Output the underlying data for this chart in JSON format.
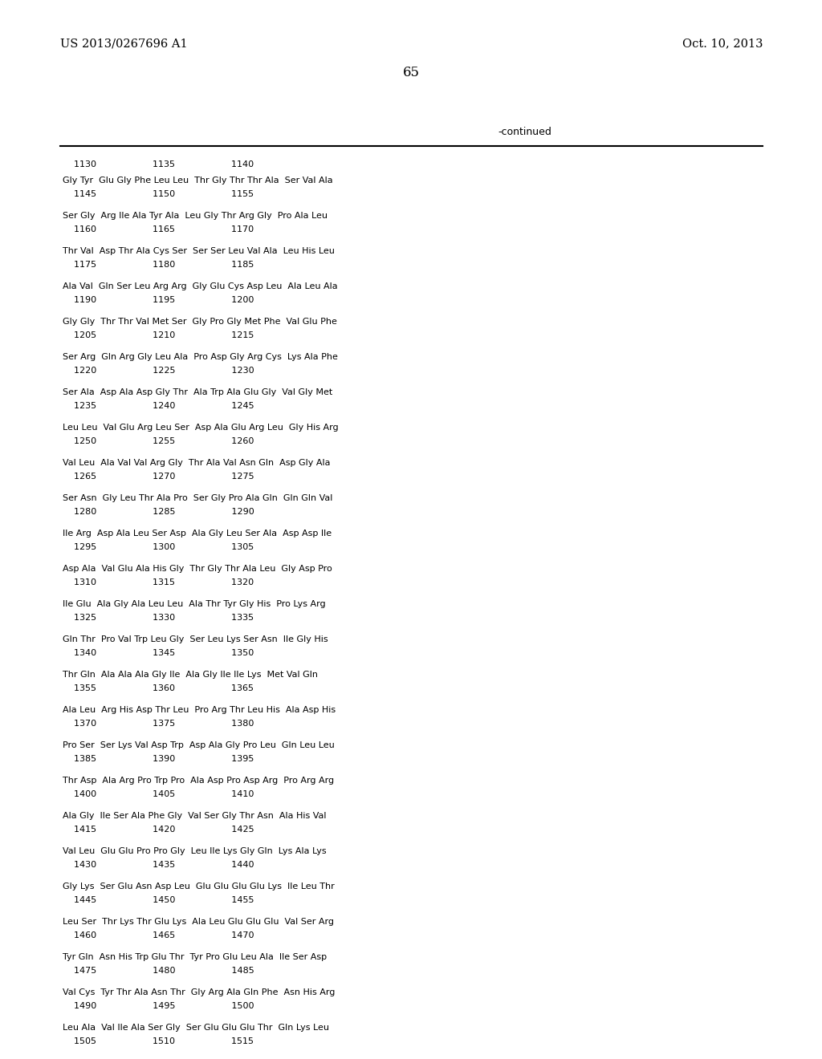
{
  "header_left": "US 2013/0267696 A1",
  "header_right": "Oct. 10, 2013",
  "page_number": "65",
  "continued_label": "-continued",
  "background_color": "#ffffff",
  "text_color": "#000000",
  "groups": [
    {
      "seq": "Gly Tyr  Glu Gly Phe Leu Leu  Thr Gly Thr Thr Ala  Ser Val Ala",
      "ruler": "    1145                    1150                    1155"
    },
    {
      "seq": "Ser Gly  Arg Ile Ala Tyr Ala  Leu Gly Thr Arg Gly  Pro Ala Leu",
      "ruler": "    1160                    1165                    1170"
    },
    {
      "seq": "Thr Val  Asp Thr Ala Cys Ser  Ser Ser Leu Val Ala  Leu His Leu",
      "ruler": "    1175                    1180                    1185"
    },
    {
      "seq": "Ala Val  Gln Ser Leu Arg Arg  Gly Glu Cys Asp Leu  Ala Leu Ala",
      "ruler": "    1190                    1195                    1200"
    },
    {
      "seq": "Gly Gly  Thr Thr Val Met Ser  Gly Pro Gly Met Phe  Val Glu Phe",
      "ruler": "    1205                    1210                    1215"
    },
    {
      "seq": "Ser Arg  Gln Arg Gly Leu Ala  Pro Asp Gly Arg Cys  Lys Ala Phe",
      "ruler": "    1220                    1225                    1230"
    },
    {
      "seq": "Ser Ala  Asp Ala Asp Gly Thr  Ala Trp Ala Glu Gly  Val Gly Met",
      "ruler": "    1235                    1240                    1245"
    },
    {
      "seq": "Leu Leu  Val Glu Arg Leu Ser  Asp Ala Glu Arg Leu  Gly His Arg",
      "ruler": "    1250                    1255                    1260"
    },
    {
      "seq": "Val Leu  Ala Val Val Arg Gly  Thr Ala Val Asn Gln  Asp Gly Ala",
      "ruler": "    1265                    1270                    1275"
    },
    {
      "seq": "Ser Asn  Gly Leu Thr Ala Pro  Ser Gly Pro Ala Gln  Gln Gln Val",
      "ruler": "    1280                    1285                    1290"
    },
    {
      "seq": "Ile Arg  Asp Ala Leu Ser Asp  Ala Gly Leu Ser Ala  Asp Asp Ile",
      "ruler": "    1295                    1300                    1305"
    },
    {
      "seq": "Asp Ala  Val Glu Ala His Gly  Thr Gly Thr Ala Leu  Gly Asp Pro",
      "ruler": "    1310                    1315                    1320"
    },
    {
      "seq": "Ile Glu  Ala Gly Ala Leu Leu  Ala Thr Tyr Gly His  Pro Lys Arg",
      "ruler": "    1325                    1330                    1335"
    },
    {
      "seq": "Gln Thr  Pro Val Trp Leu Gly  Ser Leu Lys Ser Asn  Ile Gly His",
      "ruler": "    1340                    1345                    1350"
    },
    {
      "seq": "Thr Gln  Ala Ala Ala Gly Ile  Ala Gly Ile Ile Lys  Met Val Gln",
      "ruler": "    1355                    1360                    1365"
    },
    {
      "seq": "Ala Leu  Arg His Asp Thr Leu  Pro Arg Thr Leu His  Ala Asp His",
      "ruler": "    1370                    1375                    1380"
    },
    {
      "seq": "Pro Ser  Ser Lys Val Asp Trp  Asp Ala Gly Pro Leu  Gln Leu Leu",
      "ruler": "    1385                    1390                    1395"
    },
    {
      "seq": "Thr Asp  Ala Arg Pro Trp Pro  Ala Asp Pro Asp Arg  Pro Arg Arg",
      "ruler": "    1400                    1405                    1410"
    },
    {
      "seq": "Ala Gly  Ile Ser Ala Phe Gly  Val Ser Gly Thr Asn  Ala His Val",
      "ruler": "    1415                    1420                    1425"
    },
    {
      "seq": "Val Leu  Glu Glu Pro Pro Gly  Leu Ile Lys Gly Gln  Lys Ala Lys",
      "ruler": "    1430                    1435                    1440"
    },
    {
      "seq": "Gly Lys  Ser Glu Asn Asp Leu  Glu Glu Glu Glu Lys  Ile Leu Thr",
      "ruler": "    1445                    1450                    1455"
    },
    {
      "seq": "Leu Ser  Thr Lys Thr Glu Lys  Ala Leu Glu Glu Glu  Val Ser Arg",
      "ruler": "    1460                    1465                    1470"
    },
    {
      "seq": "Tyr Gln  Asn His Trp Glu Thr  Tyr Pro Glu Leu Ala  Ile Ser Asp",
      "ruler": "    1475                    1480                    1485"
    },
    {
      "seq": "Val Cys  Tyr Thr Ala Asn Thr  Gly Arg Ala Gln Phe  Asn His Arg",
      "ruler": "    1490                    1495                    1500"
    },
    {
      "seq": "Leu Ala  Val Ile Ala Ser Gly  Ser Glu Glu Glu Thr  Gln Lys Leu",
      "ruler": "    1505                    1510                    1515"
    }
  ],
  "first_ruler": "    1130                    1135                    1140"
}
